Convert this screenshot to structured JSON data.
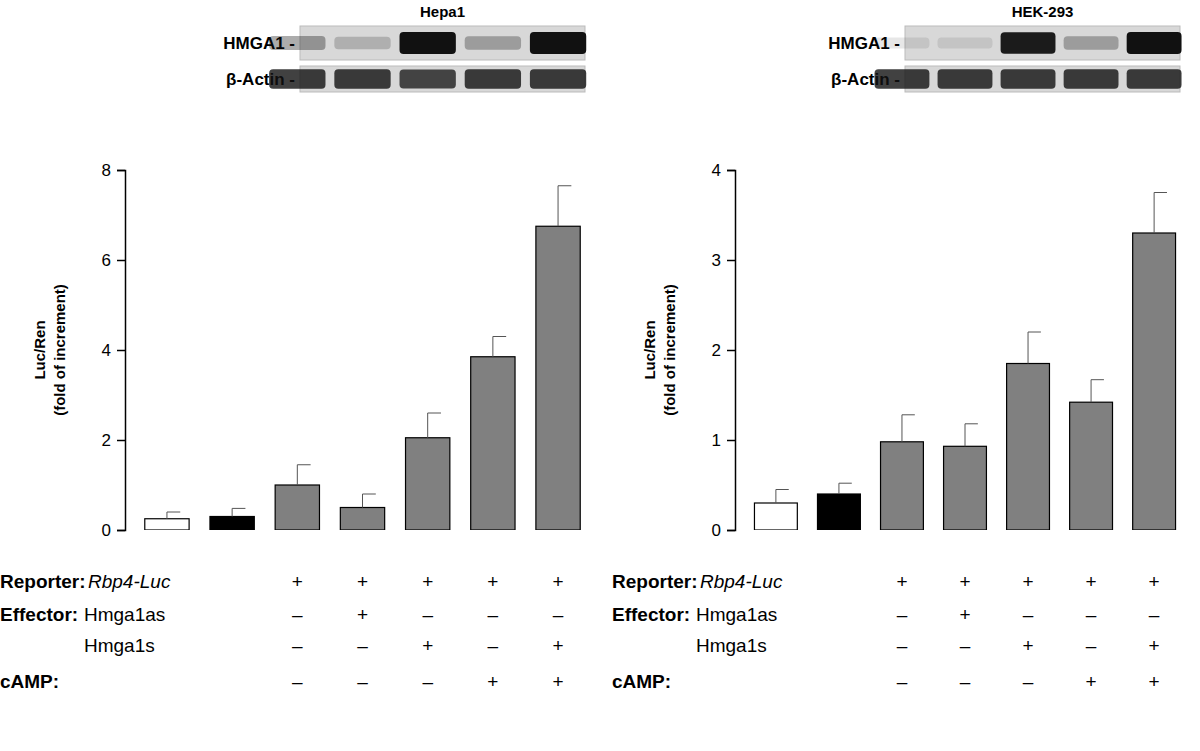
{
  "chart_data": [
    {
      "type": "bar",
      "title": "Hepa1",
      "y_label": [
        "Luc/Ren",
        "(fold of increment)"
      ],
      "categories": [
        null,
        null,
        null,
        null,
        null,
        null,
        null
      ],
      "values": [
        0.25,
        0.3,
        1.0,
        0.5,
        2.05,
        3.85,
        6.75
      ],
      "errors": [
        0.15,
        0.18,
        0.45,
        0.3,
        0.55,
        0.45,
        0.9
      ],
      "colors": [
        "#ffffff",
        "#000000",
        "#808080",
        "#808080",
        "#808080",
        "#808080",
        "#808080"
      ],
      "ylim": [
        0,
        8
      ],
      "yticks": [
        0,
        2,
        4,
        6,
        8
      ],
      "tick_labels": "y",
      "blot": [
        {
          "label": "HMGA1 -",
          "intensity": [
            null,
            null,
            0.35,
            0.2,
            1.0,
            0.3,
            1.0
          ]
        },
        {
          "label": "β-Actin -",
          "intensity": [
            null,
            null,
            0.8,
            0.8,
            0.75,
            0.8,
            0.8
          ]
        }
      ],
      "conditions": [
        {
          "label": "Reporter:",
          "name": "Rbp4-Luc",
          "signs": [
            null,
            null,
            "+",
            "+",
            "+",
            "+",
            "+"
          ]
        },
        {
          "label": "Effector:",
          "name": "Hmga1as",
          "signs": [
            null,
            null,
            "–",
            "+",
            "–",
            "–",
            "–"
          ]
        },
        {
          "name": "Hmga1s",
          "signs": [
            null,
            null,
            "–",
            "–",
            "+",
            "–",
            "+"
          ]
        },
        {
          "label": "cAMP:",
          "signs": [
            null,
            null,
            "–",
            "–",
            "–",
            "+",
            "+"
          ]
        }
      ]
    },
    {
      "type": "bar",
      "title": "HEK-293",
      "y_label": [
        "Luc/Ren",
        "(fold of increment)"
      ],
      "categories": [
        null,
        null,
        null,
        null,
        null,
        null,
        null
      ],
      "values": [
        0.3,
        0.4,
        0.98,
        0.93,
        1.85,
        1.42,
        3.3
      ],
      "errors": [
        0.15,
        0.12,
        0.3,
        0.25,
        0.35,
        0.25,
        0.45
      ],
      "colors": [
        "#ffffff",
        "#000000",
        "#808080",
        "#808080",
        "#808080",
        "#808080",
        "#808080"
      ],
      "ylim": [
        0,
        4
      ],
      "yticks": [
        0,
        1,
        2,
        3,
        4
      ],
      "tick_labels": "y",
      "blot": [
        {
          "label": "HMGA1 -",
          "intensity": [
            null,
            null,
            0.1,
            0.1,
            0.95,
            0.3,
            1.0
          ]
        },
        {
          "label": "β-Actin -",
          "intensity": [
            null,
            null,
            0.8,
            0.8,
            0.8,
            0.8,
            0.8
          ]
        }
      ],
      "conditions": [
        {
          "label": "Reporter:",
          "name": "Rbp4-Luc",
          "signs": [
            null,
            null,
            "+",
            "+",
            "+",
            "+",
            "+"
          ]
        },
        {
          "label": "Effector:",
          "name": "Hmga1as",
          "signs": [
            null,
            null,
            "–",
            "+",
            "–",
            "–",
            "–"
          ]
        },
        {
          "name": "Hmga1s",
          "signs": [
            null,
            null,
            "–",
            "–",
            "+",
            "–",
            "+"
          ]
        },
        {
          "label": "cAMP:",
          "signs": [
            null,
            null,
            "–",
            "–",
            "–",
            "+",
            "+"
          ]
        }
      ]
    }
  ]
}
